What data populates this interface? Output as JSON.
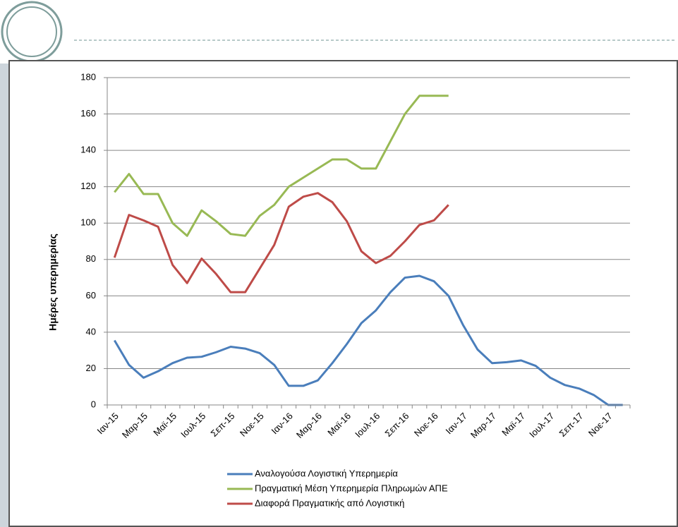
{
  "chart_data": {
    "type": "line",
    "y_label": "Ημέρες υπερημερίας",
    "categories": [
      "Ιαν-15",
      null,
      "Μαρ-15",
      null,
      "Μαϊ-15",
      null,
      "Ιουλ-15",
      null,
      "Σεπ-15",
      null,
      "Νοε-15",
      null,
      "Ιαν-16",
      null,
      "Μαρ-16",
      null,
      "Μαϊ-16",
      null,
      "Ιουλ-16",
      null,
      "Σεπ-16",
      null,
      "Νοε-16",
      null,
      "Ιαν-17",
      null,
      "Μαρ-17",
      null,
      "Μαϊ-17",
      null,
      "Ιουλ-17",
      null,
      "Σεπ-17",
      null,
      "Νοε-17",
      null
    ],
    "series": [
      {
        "name": "Αναλογούσα Λογιστική Υπερημερία",
        "color": "#4a7ebb",
        "values": [
          35.5,
          22,
          15,
          18.5,
          23,
          26,
          26.5,
          29,
          32,
          31,
          28.5,
          22,
          10.5,
          10.5,
          13.5,
          23,
          33.5,
          45,
          52,
          62,
          70,
          71,
          68,
          60,
          44,
          30.5,
          23,
          23.5,
          24.5,
          21.5,
          15,
          11,
          9,
          5.5,
          0,
          0
        ]
      },
      {
        "name": "Πραγματική Μέση Υπερημερία Πληρωμών ΑΠΕ",
        "color": "#98b954",
        "values": [
          117,
          127,
          116,
          116,
          100,
          93,
          107,
          101,
          94,
          93,
          104,
          110,
          120,
          125,
          130,
          135,
          135,
          130,
          130,
          145,
          160,
          170,
          170,
          170,
          null,
          null,
          null,
          null,
          null,
          null,
          null,
          null,
          null,
          null,
          null,
          null
        ]
      },
      {
        "name": "Διαφορά Πραγματικής από Λογιστική",
        "color": "#be4b48",
        "values": [
          81,
          104.5,
          101.5,
          98,
          77,
          67,
          80.5,
          72,
          62,
          62,
          75,
          88,
          109,
          114.5,
          116.5,
          111.5,
          101,
          84.5,
          78,
          82,
          90,
          99,
          101.5,
          110,
          null,
          null,
          null,
          null,
          null,
          null,
          null,
          null,
          null,
          null,
          null,
          null
        ]
      }
    ],
    "ylim": [
      0,
      180
    ],
    "yticks": [
      0,
      20,
      40,
      60,
      80,
      100,
      120,
      140,
      160,
      180
    ],
    "grid": true
  }
}
